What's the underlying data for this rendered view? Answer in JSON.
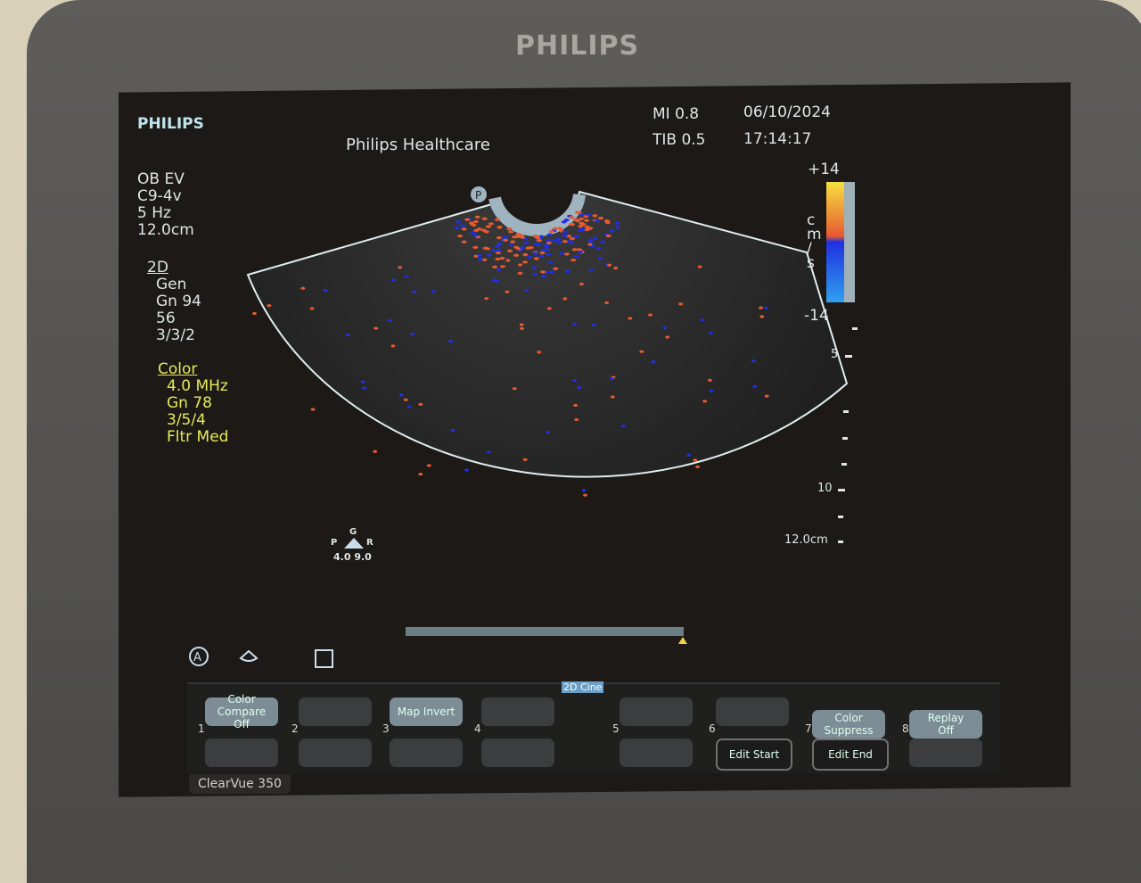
{
  "monitor": {
    "brand": "PHILIPS",
    "model": "ClearVue 350"
  },
  "header": {
    "logo": "PHILIPS",
    "institution": "Philips Healthcare",
    "mi": "MI 0.8",
    "tib": "TIB 0.5",
    "date": "06/10/2024",
    "time": "17:14:17"
  },
  "exam": {
    "preset": "OB EV",
    "transducer": "C9-4v",
    "frame_rate": "5 Hz",
    "depth": "12.0cm"
  },
  "mode_2d": {
    "title": "2D",
    "lines": [
      "Gen",
      "Gn 94",
      "56",
      "3/3/2"
    ]
  },
  "mode_color": {
    "title": "Color",
    "lines": [
      "4.0 MHz",
      "Gn 78",
      "3/5/4",
      "Fltr Med"
    ]
  },
  "color_scale": {
    "max": "+14",
    "min": "-14",
    "unit": [
      "c",
      "m",
      "/",
      "s"
    ],
    "colors": [
      "#f5e040",
      "#e85a30",
      "#2030e0",
      "#30a0f0"
    ]
  },
  "depth_scale": {
    "labels": [
      "5",
      "10",
      "12.0cm"
    ]
  },
  "probe_marker": "P",
  "focus_indicator": {
    "top": "G",
    "left": "P",
    "right": "R",
    "values": "4.0 9.0"
  },
  "cine": {
    "label": "2D Cine",
    "progress": 1.0
  },
  "softkeys": [
    {
      "num": "1",
      "top": "Color Compare",
      "top_sub": "Off"
    },
    {
      "num": "2",
      "top": ""
    },
    {
      "num": "3",
      "top": "Map Invert"
    },
    {
      "num": "4",
      "top": ""
    },
    {
      "num": "5",
      "top": ""
    },
    {
      "num": "6",
      "top": "",
      "bottom": "Edit Start"
    },
    {
      "num": "7",
      "top": "Color Suppress",
      "bottom": "Edit End"
    },
    {
      "num": "8",
      "top": "Replay",
      "top_sub": "Off"
    }
  ]
}
